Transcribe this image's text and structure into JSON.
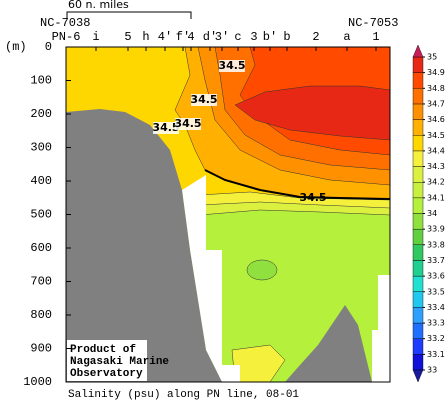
{
  "chart_data": {
    "type": "contour",
    "title": "Salinity (psu) along PN line, 08-01",
    "y_label": "(m)",
    "categories": [
      "PN-6",
      "i",
      "5",
      "h",
      "4'",
      "f'",
      "4",
      "d'",
      "3'",
      "c",
      "3",
      "b'",
      "b",
      "2",
      "a",
      "1"
    ],
    "ylim": [
      0,
      1000
    ],
    "y_inverted": true,
    "yticks": [
      0,
      100,
      200,
      300,
      400,
      500,
      600,
      700,
      800,
      900,
      1000
    ],
    "stations": {
      "left": "NC-7038",
      "right": "NC-7053"
    },
    "scale_bar": "60 n. miles",
    "contour_labels": [
      34.5,
      34.5,
      34.5,
      34.5
    ],
    "colorbar": {
      "ticks": [
        33,
        33.1,
        33.2,
        33.3,
        33.4,
        33.5,
        33.6,
        33.7,
        33.8,
        33.9,
        34,
        34.1,
        34.2,
        34.3,
        34.4,
        34.5,
        34.6,
        34.7,
        34.8,
        34.9,
        35
      ],
      "colors": [
        "#1010d8",
        "#1e3cff",
        "#2070ff",
        "#30a0ff",
        "#20c8f0",
        "#20e0d0",
        "#20d090",
        "#30c860",
        "#60d040",
        "#90e040",
        "#b4f03c",
        "#c8f040",
        "#dcf040",
        "#f5f03c",
        "#ffd700",
        "#ffb000",
        "#ff9000",
        "#ff7000",
        "#ff4a00",
        "#e62814"
      ],
      "under": "#1a1aa0",
      "over": "#c81e5a"
    },
    "credit": [
      "Product of",
      "Nagasaki Marine",
      "Observatory"
    ]
  }
}
